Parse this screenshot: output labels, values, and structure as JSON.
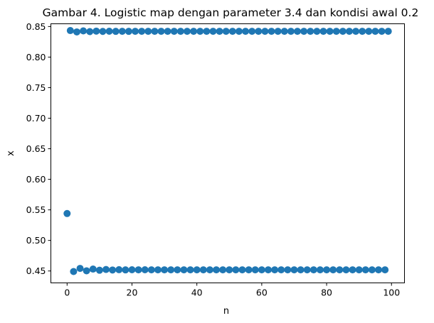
{
  "chart_data": {
    "type": "scatter",
    "title": "Gambar 4. Logistic map dengan parameter 3.4 dan kondisi awal 0.2",
    "xlabel": "n",
    "ylabel": "x",
    "xlim": [
      -5,
      104
    ],
    "ylim": [
      0.4305,
      0.8545
    ],
    "xticks": [
      0,
      20,
      40,
      60,
      80,
      100
    ],
    "yticks": [
      0.45,
      0.5,
      0.55,
      0.6,
      0.65,
      0.7,
      0.75,
      0.8,
      0.85
    ],
    "xtick_labels": [
      "0",
      "20",
      "40",
      "60",
      "80",
      "100"
    ],
    "ytick_labels": [
      "0.45",
      "0.50",
      "0.55",
      "0.60",
      "0.65",
      "0.70",
      "0.75",
      "0.80",
      "0.85"
    ],
    "grid": false,
    "marker_color": "#1f77b4",
    "series": [
      {
        "x": [
          0,
          1,
          2,
          3,
          4,
          5,
          6,
          7,
          8,
          9,
          10,
          11,
          12,
          13,
          14,
          15,
          16,
          17,
          18,
          19,
          20,
          21,
          22,
          23,
          24,
          25,
          26,
          27,
          28,
          29,
          30,
          31,
          32,
          33,
          34,
          35,
          36,
          37,
          38,
          39,
          40,
          41,
          42,
          43,
          44,
          45,
          46,
          47,
          48,
          49,
          50,
          51,
          52,
          53,
          54,
          55,
          56,
          57,
          58,
          59,
          60,
          61,
          62,
          63,
          64,
          65,
          66,
          67,
          68,
          69,
          70,
          71,
          72,
          73,
          74,
          75,
          76,
          77,
          78,
          79,
          80,
          81,
          82,
          83,
          84,
          85,
          86,
          87,
          88,
          89,
          90,
          91,
          92,
          93,
          94,
          95,
          96,
          97,
          98,
          99
        ],
        "y": [
          0.544,
          0.8434,
          0.4491,
          0.8412,
          0.4542,
          0.8429,
          0.4503,
          0.8417,
          0.4531,
          0.8425,
          0.4512,
          0.842,
          0.4524,
          0.8423,
          0.4516,
          0.8421,
          0.4521,
          0.8422,
          0.4518,
          0.8421,
          0.452,
          0.8422,
          0.4519,
          0.8422,
          0.452,
          0.8422,
          0.4519,
          0.8422,
          0.4519,
          0.8422,
          0.4519,
          0.8422,
          0.4519,
          0.8422,
          0.4519,
          0.8422,
          0.4519,
          0.8422,
          0.4519,
          0.8422,
          0.4519,
          0.8422,
          0.4519,
          0.8422,
          0.4519,
          0.8422,
          0.4519,
          0.8422,
          0.4519,
          0.8422,
          0.4519,
          0.8422,
          0.4519,
          0.8422,
          0.4519,
          0.8422,
          0.4519,
          0.8422,
          0.4519,
          0.8422,
          0.4519,
          0.8422,
          0.4519,
          0.8422,
          0.4519,
          0.8422,
          0.4519,
          0.8422,
          0.4519,
          0.8422,
          0.4519,
          0.8422,
          0.4519,
          0.8422,
          0.4519,
          0.8422,
          0.4519,
          0.8422,
          0.4519,
          0.8422,
          0.4519,
          0.8422,
          0.4519,
          0.8422,
          0.4519,
          0.8422,
          0.4519,
          0.8422,
          0.4519,
          0.8422,
          0.4519,
          0.8422,
          0.4519,
          0.8422,
          0.4519,
          0.8422,
          0.4519,
          0.8422,
          0.4519,
          0.8422
        ]
      }
    ]
  }
}
